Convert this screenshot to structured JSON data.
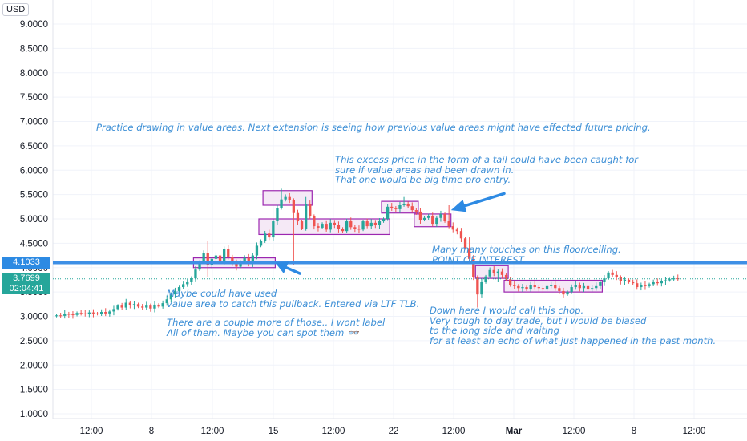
{
  "currency_label": "USD",
  "colors": {
    "up": "#26a69a",
    "down": "#ef5350",
    "line": "#3d8fd6",
    "box_stroke": "#9c27b0",
    "box_fill": "#f3e5f5"
  },
  "chart_data": {
    "type": "candlestick",
    "y_ticks": [
      "9.0000",
      "8.5000",
      "8.0000",
      "7.5000",
      "7.0000",
      "6.5000",
      "6.0000",
      "5.5000",
      "5.0000",
      "4.5000",
      "4.0000",
      "3.5000",
      "3.0000",
      "2.5000",
      "2.0000",
      "1.5000",
      "1.0000"
    ],
    "ylim": [
      0.9,
      9.4
    ],
    "x_ticks": [
      "12:00",
      "8",
      "12:00",
      "15",
      "12:00",
      "22",
      "12:00",
      "Mar",
      "12:00",
      "8",
      "12:00"
    ],
    "x_ticks_bold": [
      "Mar"
    ],
    "horizontal_level": {
      "value": 4.1033,
      "label": "4.1033"
    },
    "last_price": {
      "value": 3.7699,
      "label": "3.7699",
      "countdown": "02:04:41"
    },
    "value_area_boxes": [
      {
        "t0": 34,
        "t1": 54,
        "y_low": 4.0,
        "y_high": 4.2
      },
      {
        "t0": 51,
        "t1": 63,
        "y_low": 5.28,
        "y_high": 5.58
      },
      {
        "t0": 50,
        "t1": 82,
        "y_low": 4.68,
        "y_high": 5.0
      },
      {
        "t0": 80,
        "t1": 89,
        "y_low": 5.12,
        "y_high": 5.36
      },
      {
        "t0": 88,
        "t1": 97,
        "y_low": 4.84,
        "y_high": 5.1
      },
      {
        "t0": 103,
        "t1": 111,
        "y_low": 3.78,
        "y_high": 4.04
      },
      {
        "t0": 110,
        "t1": 134,
        "y_low": 3.5,
        "y_high": 3.74
      }
    ],
    "arrows": [
      {
        "t0": 110,
        "y0": 5.52,
        "t1": 97,
        "y1": 5.18
      },
      {
        "t0": 60,
        "y0": 3.88,
        "t1": 54,
        "y1": 4.1
      }
    ],
    "close": [
      3.02,
      3.01,
      3.05,
      3.04,
      3.03,
      3.07,
      3.06,
      3.05,
      3.08,
      3.06,
      3.05,
      3.09,
      3.06,
      3.1,
      3.15,
      3.22,
      3.18,
      3.28,
      3.23,
      3.25,
      3.2,
      3.18,
      3.22,
      3.16,
      3.24,
      3.2,
      3.27,
      3.35,
      3.45,
      3.52,
      3.6,
      3.66,
      3.7,
      3.78,
      3.96,
      4.12,
      4.3,
      4.05,
      4.18,
      4.25,
      4.1,
      4.38,
      4.22,
      4.1,
      4.02,
      4.12,
      4.2,
      4.08,
      4.25,
      4.45,
      4.55,
      4.7,
      4.62,
      4.95,
      5.22,
      5.4,
      5.45,
      5.38,
      5.12,
      4.95,
      4.8,
      5.3,
      5.05,
      4.85,
      4.82,
      4.9,
      4.78,
      4.92,
      4.88,
      4.8,
      4.75,
      4.95,
      4.83,
      4.8,
      4.78,
      4.95,
      4.85,
      4.92,
      4.88,
      4.95,
      5.0,
      5.25,
      5.22,
      5.2,
      5.28,
      5.3,
      5.26,
      5.18,
      5.15,
      4.98,
      5.02,
      5.05,
      4.9,
      5.02,
      5.1,
      4.95,
      4.85,
      4.78,
      4.75,
      4.6,
      4.4,
      4.18,
      3.8,
      3.45,
      3.7,
      3.82,
      3.95,
      3.88,
      3.92,
      3.85,
      3.76,
      3.65,
      3.62,
      3.58,
      3.6,
      3.55,
      3.65,
      3.6,
      3.58,
      3.55,
      3.62,
      3.65,
      3.58,
      3.52,
      3.45,
      3.5,
      3.6,
      3.65,
      3.58,
      3.62,
      3.55,
      3.58,
      3.62,
      3.7,
      3.78,
      3.9,
      3.85,
      3.8,
      3.72,
      3.75,
      3.7,
      3.68,
      3.6,
      3.65,
      3.62,
      3.66,
      3.7,
      3.68,
      3.72,
      3.74,
      3.76,
      3.78,
      3.77
    ],
    "high_extremes": {
      "55": 5.62,
      "37": 4.55,
      "61": 5.45,
      "85": 5.45,
      "96": 5.28,
      "101": 4.62
    },
    "low_extremes": {
      "103": 3.18,
      "58": 4.05,
      "37": 3.8,
      "108": 3.7
    }
  },
  "annotations": {
    "a1": "Practice drawing in value areas. Next extension is seeing how previous value areas might have effected future pricing.",
    "a2": "This excess price in the form of a tail could have been caught for\nsure if value areas had been drawn in.\nThat one would be big time pro entry.",
    "a3": "Many many touches on this floor/ceiling.\nPOINT OF INTEREST.",
    "a4": "Maybe could have used\nvalue area to catch this pullback. Entered via LTF TLB.",
    "a5": "There are a couple more of those.. I wont label\nAll of them. Maybe you can spot them 👓",
    "a6": "Down here I would call this chop.\nVery tough to day trade, but I would be biased\nto the long side and waiting\nfor at least an echo of what just happened in the past month."
  }
}
